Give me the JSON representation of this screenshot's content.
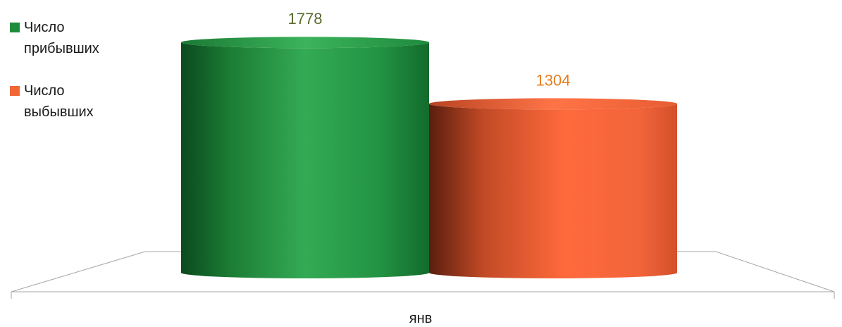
{
  "chart_data": {
    "type": "bar",
    "categories": [
      "янв"
    ],
    "series": [
      {
        "name": "Число прибывших",
        "values": [
          1778
        ],
        "color": "#22933f",
        "label_color": "#5a6b2e"
      },
      {
        "name": "Число выбывших",
        "values": [
          1304
        ],
        "color": "#f26635",
        "label_color": "#e67e22"
      }
    ],
    "xlabel": "",
    "ylabel": "",
    "ylim": [
      0,
      1850
    ],
    "grid": false,
    "legend_position": "left",
    "style": "3d-cylinder"
  },
  "legend": {
    "items": [
      {
        "label": "Число\nприбывших",
        "color": "#1e8c3a"
      },
      {
        "label": "Число\nвыбывших",
        "color": "#f26635"
      }
    ]
  }
}
